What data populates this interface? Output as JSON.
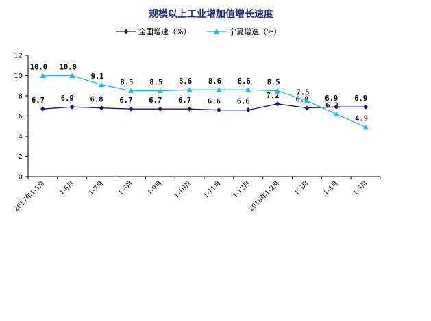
{
  "chart_data": {
    "type": "line",
    "title": "规模以上工业增加值增长速度",
    "categories": [
      "2017年1-5月",
      "1-6月",
      "1-7月",
      "1-8月",
      "1-9月",
      "1-10月",
      "1-11月",
      "1-12月",
      "2018年1-2月",
      "1-3月",
      "1-4月",
      "1-5月"
    ],
    "series": [
      {
        "name": "全国增速（%）",
        "color": "#1a1a7a",
        "marker": "diamond",
        "values": [
          6.7,
          6.9,
          6.8,
          6.7,
          6.7,
          6.7,
          6.6,
          6.6,
          7.2,
          6.8,
          6.9,
          6.9
        ],
        "labels": [
          "6.7",
          "6.9",
          "6.8",
          "6.7",
          "6.7",
          "6.7",
          "6.6",
          "6.6",
          "7.2",
          "6.8",
          "6.9",
          "6.9"
        ]
      },
      {
        "name": "宁夏增速（%）",
        "color": "#1fb8e8",
        "marker": "triangle",
        "values": [
          10.0,
          10.0,
          9.1,
          8.5,
          8.5,
          8.6,
          8.6,
          8.6,
          8.5,
          7.5,
          6.2,
          4.9
        ],
        "labels": [
          "10.0",
          "10.0",
          "9.1",
          "8.5",
          "8.5",
          "8.6",
          "8.6",
          "8.6",
          "8.5",
          "7.5",
          "6.2",
          "4.9"
        ]
      }
    ],
    "ylim": [
      0,
      12
    ],
    "yticks": [
      "0",
      "2",
      "4",
      "6",
      "8",
      "10",
      "12"
    ],
    "grid": false,
    "legend": "top-center"
  }
}
